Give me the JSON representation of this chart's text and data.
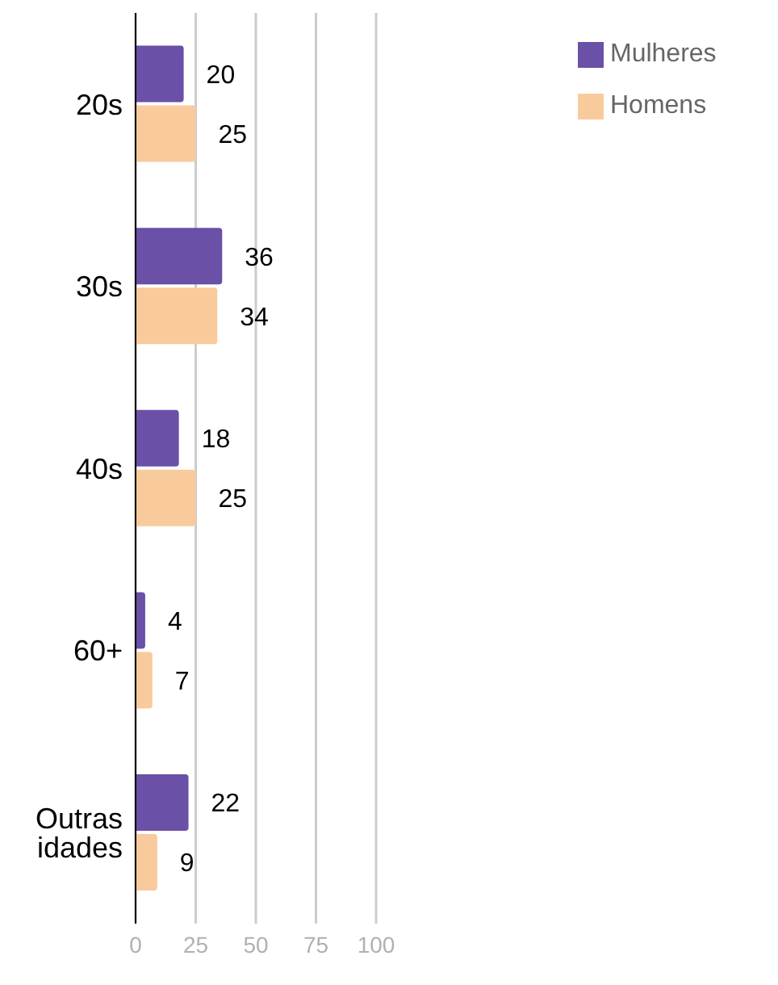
{
  "chart_data": {
    "type": "bar",
    "orientation": "horizontal",
    "categories": [
      "20s",
      "30s",
      "40s",
      "60+",
      "Outras idades"
    ],
    "series": [
      {
        "name": "Mulheres",
        "color": "#6a50a7",
        "values": [
          20,
          36,
          18,
          4,
          22
        ]
      },
      {
        "name": "Homens",
        "color": "#f9cb9c",
        "values": [
          25,
          34,
          25,
          7,
          9
        ]
      }
    ],
    "xlim": [
      0,
      100
    ],
    "xticks": [
      0,
      25,
      50,
      75,
      100
    ],
    "grid": "x",
    "legend": "top right",
    "data_labels": true
  }
}
